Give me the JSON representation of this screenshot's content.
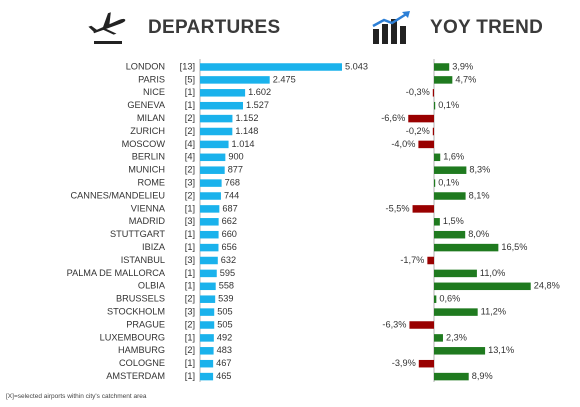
{
  "headers": {
    "departures": "DEPARTURES",
    "departures_icon": "plane-takeoff-icon",
    "yoy_trend": "YOY TREND",
    "yoy_trend_icon": "bar-trend-icon"
  },
  "footnote": "[X]=selected airports within city's catchment area",
  "colors": {
    "departures_bar": "#1ab2ec",
    "yoy_positive": "#1f7a1f",
    "yoy_negative": "#990000",
    "axis": "#b0b0b0",
    "text": "#333333"
  },
  "chart_data": [
    {
      "type": "bar",
      "orientation": "horizontal",
      "title": "DEPARTURES",
      "categories": [
        "LONDON",
        "PARIS",
        "NICE",
        "GENEVA",
        "MILAN",
        "ZURICH",
        "MOSCOW",
        "BERLIN",
        "MUNICH",
        "ROME",
        "CANNES/MANDELIEU",
        "VIENNA",
        "MADRID",
        "STUTTGART",
        "IBIZA",
        "ISTANBUL",
        "PALMA DE MALLORCA",
        "OLBIA",
        "BRUSSELS",
        "STOCKHOLM",
        "PRAGUE",
        "LUXEMBOURG",
        "HAMBURG",
        "COLOGNE",
        "AMSTERDAM"
      ],
      "airport_counts": [
        "[13]",
        "[5]",
        "[1]",
        "[1]",
        "[2]",
        "[2]",
        "[4]",
        "[4]",
        "[2]",
        "[3]",
        "[2]",
        "[1]",
        "[3]",
        "[1]",
        "[1]",
        "[3]",
        "[1]",
        "[1]",
        "[2]",
        "[3]",
        "[2]",
        "[1]",
        "[2]",
        "[1]",
        "[1]"
      ],
      "values": [
        5043,
        2475,
        1602,
        1527,
        1152,
        1148,
        1014,
        900,
        877,
        768,
        744,
        687,
        662,
        660,
        656,
        632,
        595,
        558,
        539,
        505,
        505,
        492,
        483,
        467,
        465
      ],
      "value_labels": [
        "5.043",
        "2.475",
        "1.602",
        "1.527",
        "1.152",
        "1.148",
        "1.014",
        "900",
        "877",
        "768",
        "744",
        "687",
        "662",
        "660",
        "656",
        "632",
        "595",
        "558",
        "539",
        "505",
        "505",
        "492",
        "483",
        "467",
        "465"
      ],
      "xlim": [
        0,
        5043
      ]
    },
    {
      "type": "bar",
      "orientation": "horizontal",
      "title": "YOY TREND",
      "categories": [
        "LONDON",
        "PARIS",
        "NICE",
        "GENEVA",
        "MILAN",
        "ZURICH",
        "MOSCOW",
        "BERLIN",
        "MUNICH",
        "ROME",
        "CANNES/MANDELIEU",
        "VIENNA",
        "MADRID",
        "STUTTGART",
        "IBIZA",
        "ISTANBUL",
        "PALMA DE MALLORCA",
        "OLBIA",
        "BRUSSELS",
        "STOCKHOLM",
        "PRAGUE",
        "LUXEMBOURG",
        "HAMBURG",
        "COLOGNE",
        "AMSTERDAM"
      ],
      "values": [
        3.9,
        4.7,
        -0.3,
        0.1,
        -6.6,
        -0.2,
        -4.0,
        1.6,
        8.3,
        0.1,
        8.1,
        -5.5,
        1.5,
        8.0,
        16.5,
        -1.7,
        11.0,
        24.8,
        0.6,
        11.2,
        -6.3,
        2.3,
        13.1,
        -3.9,
        8.9
      ],
      "value_labels": [
        "3,9%",
        "4,7%",
        "-0,3%",
        "0,1%",
        "-6,6%",
        "-0,2%",
        "-4,0%",
        "1,6%",
        "8,3%",
        "0,1%",
        "8,1%",
        "-5,5%",
        "1,5%",
        "8,0%",
        "16,5%",
        "-1,7%",
        "11,0%",
        "24,8%",
        "0,6%",
        "11,2%",
        "-6,3%",
        "2,3%",
        "13,1%",
        "-3,9%",
        "8,9%"
      ],
      "xlim": [
        -6.6,
        24.8
      ]
    }
  ]
}
